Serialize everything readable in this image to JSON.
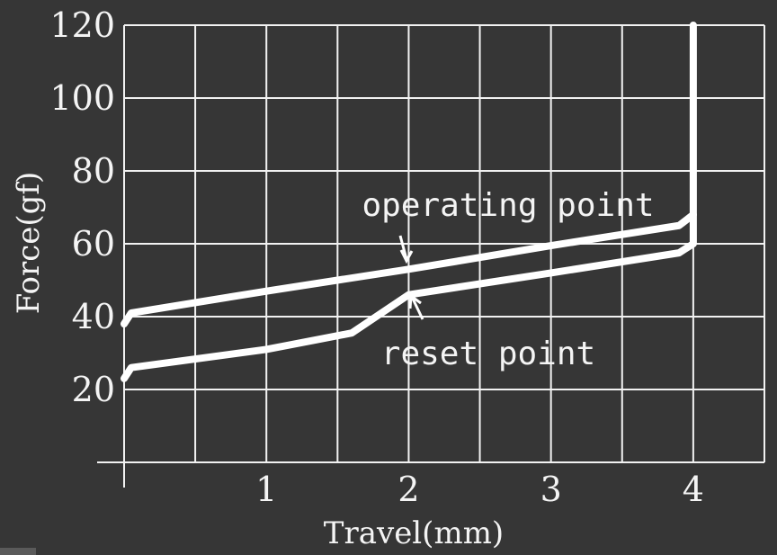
{
  "chart_data": {
    "type": "line",
    "title": "",
    "xlabel": "Travel(mm)",
    "ylabel": "Force(gf)",
    "xlim": [
      0,
      4.5
    ],
    "ylim": [
      0,
      120
    ],
    "x_ticks": [
      "1",
      "2",
      "3",
      "4"
    ],
    "x_tick_values": [
      1,
      2,
      3,
      4
    ],
    "y_ticks": [
      "20",
      "40",
      "60",
      "80",
      "100",
      "120"
    ],
    "y_tick_values": [
      20,
      40,
      60,
      80,
      100,
      120
    ],
    "grid": true,
    "series": [
      {
        "name": "operating point",
        "x": [
          0,
          0.05,
          1,
          2,
          3,
          3.9,
          4.0,
          4.0
        ],
        "y": [
          38,
          41,
          47,
          53,
          59.5,
          65,
          68,
          120
        ]
      },
      {
        "name": "reset point",
        "x": [
          0,
          0.05,
          1,
          1.6,
          2.0,
          3,
          3.9,
          4.0,
          4.0
        ],
        "y": [
          23,
          26,
          31,
          35.5,
          46,
          52,
          57.5,
          60,
          68
        ]
      }
    ],
    "annotations": [
      {
        "text": "operating point",
        "x": 2.0,
        "y": 56
      },
      {
        "text": "reset point",
        "x": 2.0,
        "y": 45
      }
    ]
  }
}
